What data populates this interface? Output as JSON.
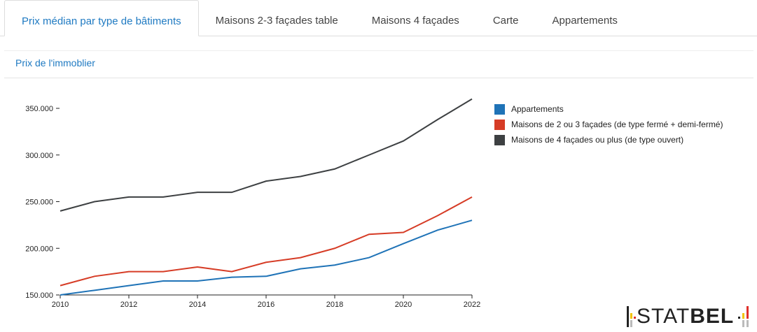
{
  "tabs": [
    {
      "label": "Prix médian par type de bâtiments",
      "active": true
    },
    {
      "label": "Maisons 2-3 façades table"
    },
    {
      "label": "Maisons 4 façades"
    },
    {
      "label": "Carte"
    },
    {
      "label": "Appartements"
    }
  ],
  "panel_title": "Prix de l'immoblier",
  "logo": {
    "text_light": "STAT",
    "text_bold": "BEL"
  },
  "chart_data": {
    "type": "line",
    "x": [
      2010,
      2011,
      2012,
      2013,
      2014,
      2015,
      2016,
      2017,
      2018,
      2019,
      2020,
      2021,
      2022
    ],
    "xticks": [
      "2010",
      "2012",
      "2014",
      "2016",
      "2018",
      "2020",
      "2022"
    ],
    "yticks": [
      "150.000",
      "200.000",
      "250.000",
      "300.000",
      "350.000"
    ],
    "ylim": [
      150000,
      360000
    ],
    "legend_position": "right",
    "series": [
      {
        "name": "Appartements",
        "color": "#1f73b7",
        "values": [
          150000,
          155000,
          160000,
          165000,
          165000,
          169000,
          170000,
          178000,
          182000,
          190000,
          205000,
          219500,
          230000
        ]
      },
      {
        "name": "Maisons de 2 ou 3 façades (de type fermé + demi-fermé)",
        "color": "#d63c26",
        "values": [
          160000,
          170000,
          175000,
          175000,
          180000,
          175000,
          185000,
          190000,
          200000,
          215000,
          217000,
          235000,
          255000
        ]
      },
      {
        "name": "Maisons de 4 façades ou plus (de type ouvert)",
        "color": "#3d4042",
        "values": [
          240000,
          250000,
          255000,
          255000,
          260000,
          260000,
          272000,
          277000,
          285000,
          300000,
          315000,
          338000,
          360000
        ]
      }
    ]
  }
}
